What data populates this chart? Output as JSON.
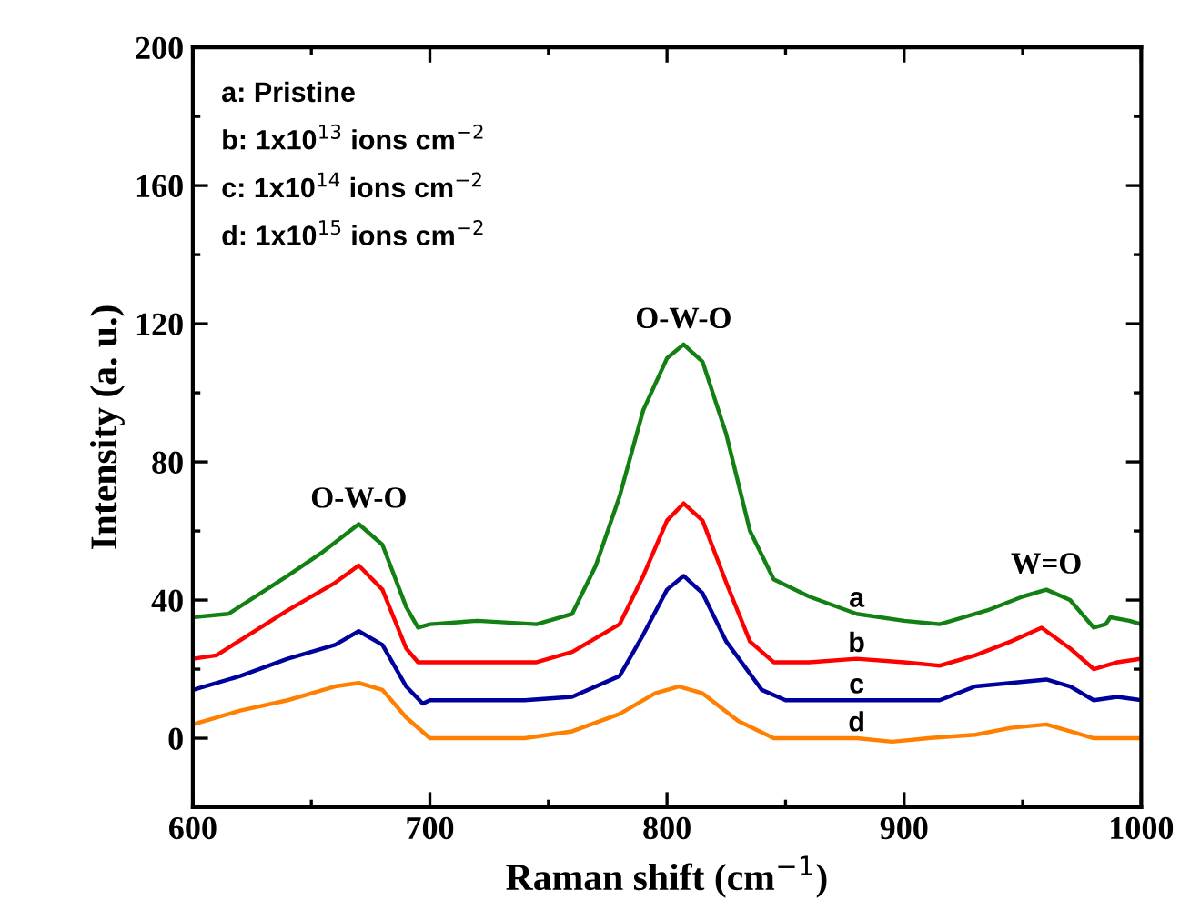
{
  "chart_data": {
    "type": "line",
    "xlabel": "Raman shift (cm$^{−1}$)",
    "ylabel": "Intensity (a. u.)",
    "xlim": [
      600,
      1000
    ],
    "xticks": [
      600,
      700,
      800,
      900,
      1000
    ],
    "ylim": [
      -20,
      200
    ],
    "yticks": [
      0,
      40,
      80,
      120,
      160,
      200
    ],
    "grid": false,
    "legend": false,
    "marker": "none",
    "line_style": "solid",
    "annotations": [
      "a: Pristine",
      "b: 1x10$^{13}$ ions cm$^{−2}$",
      "c: 1x10$^{14}$ ions cm$^{−2}$",
      "d: 1x10$^{15}$ ions cm$^{−2}$",
      {
        "text": "O-W-O",
        "x": 670,
        "y": 62
      },
      {
        "text": "O-W-O",
        "x": 807,
        "y": 114
      },
      {
        "text": "W=O",
        "x": 960,
        "y": 43
      }
    ],
    "series": [
      {
        "name": "a",
        "color": "#138013",
        "x": [
          600,
          615,
          640,
          655,
          670,
          680,
          690,
          695,
          700,
          720,
          745,
          755,
          760,
          770,
          780,
          790,
          800,
          807,
          815,
          825,
          835,
          845,
          860,
          880,
          900,
          915,
          920,
          935,
          950,
          960,
          970,
          980,
          985,
          987,
          995,
          1000
        ],
        "values": [
          35,
          36,
          47,
          54,
          62,
          56,
          38,
          32,
          33,
          34,
          33,
          35,
          36,
          50,
          70,
          95,
          110,
          114,
          109,
          88,
          60,
          46,
          41,
          36,
          34,
          33,
          34,
          37,
          41,
          43,
          40,
          32,
          33,
          35,
          34,
          33
        ]
      },
      {
        "name": "b",
        "color": "#ff0000",
        "x": [
          600,
          610,
          640,
          660,
          670,
          680,
          690,
          695,
          700,
          720,
          745,
          760,
          780,
          790,
          800,
          807,
          815,
          825,
          835,
          845,
          860,
          880,
          900,
          915,
          930,
          945,
          958,
          970,
          980,
          990,
          1000
        ],
        "values": [
          23,
          24,
          37,
          45,
          50,
          43,
          26,
          22,
          22,
          22,
          22,
          25,
          33,
          47,
          63,
          68,
          63,
          45,
          28,
          22,
          22,
          23,
          22,
          21,
          24,
          28,
          32,
          26,
          20,
          22,
          23
        ]
      },
      {
        "name": "c",
        "color": "#00009c",
        "x": [
          600,
          620,
          640,
          660,
          670,
          680,
          690,
          697,
          700,
          720,
          740,
          760,
          780,
          790,
          800,
          807,
          815,
          825,
          840,
          850,
          880,
          900,
          915,
          930,
          945,
          960,
          970,
          980,
          990,
          1000
        ],
        "values": [
          14,
          18,
          23,
          27,
          31,
          27,
          15,
          10,
          11,
          11,
          11,
          12,
          18,
          30,
          43,
          47,
          42,
          28,
          14,
          11,
          11,
          11,
          11,
          15,
          16,
          17,
          15,
          11,
          12,
          11
        ]
      },
      {
        "name": "d",
        "color": "#ff8000",
        "x": [
          600,
          620,
          640,
          660,
          670,
          680,
          690,
          700,
          720,
          740,
          760,
          780,
          795,
          805,
          815,
          830,
          845,
          880,
          895,
          910,
          930,
          945,
          960,
          970,
          980,
          1000
        ],
        "values": [
          4,
          8,
          11,
          15,
          16,
          14,
          6,
          0,
          0,
          0,
          2,
          7,
          13,
          15,
          13,
          5,
          0,
          0,
          -1,
          0,
          1,
          3,
          4,
          2,
          0,
          0
        ]
      }
    ]
  }
}
